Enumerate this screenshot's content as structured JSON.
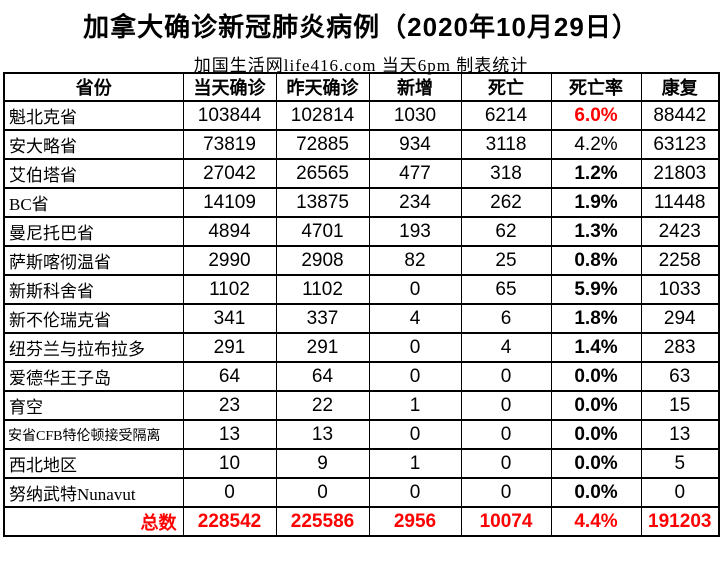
{
  "title": "加拿大确诊新冠肺炎病例（2020年10月29日）",
  "subtitle": "加国生活网life416.com 当天6pm 制表统计",
  "colors": {
    "highlight_red": "#ff0000",
    "text": "#000000",
    "border": "#000000",
    "background": "#ffffff"
  },
  "table": {
    "headers": [
      "省份",
      "当天确诊",
      "昨天确诊",
      "新增",
      "死亡",
      "死亡率",
      "康复"
    ],
    "rows": [
      {
        "province": "魁北克省",
        "today": "103844",
        "yesterday": "102814",
        "new": "1030",
        "deaths": "6214",
        "death_rate": "6.0%",
        "recovered": "88442",
        "rate_style": "red-bold",
        "small": false
      },
      {
        "province": "安大略省",
        "today": "73819",
        "yesterday": "72885",
        "new": "934",
        "deaths": "3118",
        "death_rate": "4.2%",
        "recovered": "63123",
        "rate_style": "normal",
        "small": false
      },
      {
        "province": "艾伯塔省",
        "today": "27042",
        "yesterday": "26565",
        "new": "477",
        "deaths": "318",
        "death_rate": "1.2%",
        "recovered": "21803",
        "rate_style": "bold",
        "small": false
      },
      {
        "province": "BC省",
        "today": "14109",
        "yesterday": "13875",
        "new": "234",
        "deaths": "262",
        "death_rate": "1.9%",
        "recovered": "11448",
        "rate_style": "bold",
        "small": false
      },
      {
        "province": "曼尼托巴省",
        "today": "4894",
        "yesterday": "4701",
        "new": "193",
        "deaths": "62",
        "death_rate": "1.3%",
        "recovered": "2423",
        "rate_style": "bold",
        "small": false
      },
      {
        "province": "萨斯喀彻温省",
        "today": "2990",
        "yesterday": "2908",
        "new": "82",
        "deaths": "25",
        "death_rate": "0.8%",
        "recovered": "2258",
        "rate_style": "bold",
        "small": false
      },
      {
        "province": "新斯科舍省",
        "today": "1102",
        "yesterday": "1102",
        "new": "0",
        "deaths": "65",
        "death_rate": "5.9%",
        "recovered": "1033",
        "rate_style": "bold",
        "small": false
      },
      {
        "province": "新不伦瑞克省",
        "today": "341",
        "yesterday": "337",
        "new": "4",
        "deaths": "6",
        "death_rate": "1.8%",
        "recovered": "294",
        "rate_style": "bold",
        "small": false
      },
      {
        "province": "纽芬兰与拉布拉多",
        "today": "291",
        "yesterday": "291",
        "new": "0",
        "deaths": "4",
        "death_rate": "1.4%",
        "recovered": "283",
        "rate_style": "bold",
        "small": false
      },
      {
        "province": "爱德华王子岛",
        "today": "64",
        "yesterday": "64",
        "new": "0",
        "deaths": "0",
        "death_rate": "0.0%",
        "recovered": "63",
        "rate_style": "bold",
        "small": false
      },
      {
        "province": "育空",
        "today": "23",
        "yesterday": "22",
        "new": "1",
        "deaths": "0",
        "death_rate": "0.0%",
        "recovered": "15",
        "rate_style": "bold",
        "small": false
      },
      {
        "province": "安省CFB特伦顿接受隔离",
        "today": "13",
        "yesterday": "13",
        "new": "0",
        "deaths": "0",
        "death_rate": "0.0%",
        "recovered": "13",
        "rate_style": "bold",
        "small": true
      },
      {
        "province": "西北地区",
        "today": "10",
        "yesterday": "9",
        "new": "1",
        "deaths": "0",
        "death_rate": "0.0%",
        "recovered": "5",
        "rate_style": "bold",
        "small": false
      },
      {
        "province": "努纳武特Nunavut",
        "today": "0",
        "yesterday": "0",
        "new": "0",
        "deaths": "0",
        "death_rate": "0.0%",
        "recovered": "0",
        "rate_style": "bold",
        "small": false
      }
    ],
    "total": {
      "label": "总数",
      "today": "228542",
      "yesterday": "225586",
      "new": "2956",
      "deaths": "10074",
      "death_rate": "4.4%",
      "recovered": "191203"
    }
  }
}
